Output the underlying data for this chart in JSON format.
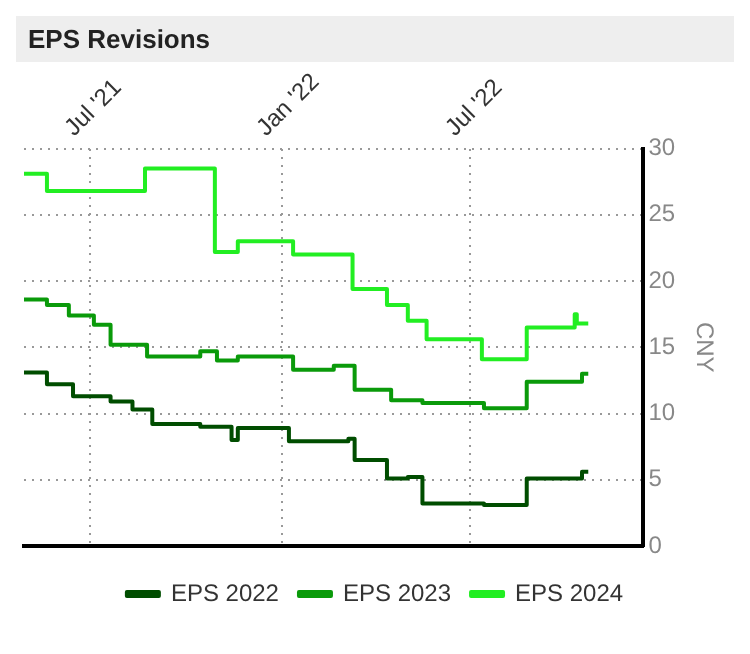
{
  "chart_data": {
    "type": "step",
    "title": "EPS Revisions",
    "ylabel": "CNY",
    "xlim": [
      "2021-04-29",
      "2022-12-13"
    ],
    "xticks": [
      {
        "value": "2021-07-01",
        "label": "Jul '21"
      },
      {
        "value": "2022-01-01",
        "label": "Jan '22"
      },
      {
        "value": "2022-07-01",
        "label": "Jul '22"
      }
    ],
    "ylim": [
      0,
      30
    ],
    "yticks": [
      0,
      5,
      10,
      15,
      20,
      25,
      30
    ],
    "grid": true,
    "legend": "bottom",
    "marker": "none",
    "line_style": "solid",
    "series": [
      {
        "name": "EPS 2022",
        "color": "#004d00",
        "x": [
          "2021-04-29",
          "2021-05-21",
          "2021-06-15",
          "2021-07-21",
          "2021-08-11",
          "2021-08-30",
          "2021-10-15",
          "2021-11-14",
          "2021-11-20",
          "2022-01-08",
          "2022-03-06",
          "2022-03-12",
          "2022-04-12",
          "2022-05-02",
          "2022-05-16",
          "2022-07-14",
          "2022-08-24",
          "2022-10-16",
          "2022-10-22"
        ],
        "values": [
          13.1,
          12.2,
          11.3,
          10.9,
          10.3,
          9.2,
          9.0,
          8.0,
          8.9,
          7.9,
          8.1,
          6.5,
          5.1,
          5.2,
          3.2,
          3.1,
          5.1,
          5.6,
          5.6
        ]
      },
      {
        "name": "EPS 2023",
        "color": "#0a9a0a",
        "x": [
          "2021-04-29",
          "2021-05-21",
          "2021-06-11",
          "2021-07-05",
          "2021-07-21",
          "2021-08-25",
          "2021-10-15",
          "2021-10-31",
          "2021-11-20",
          "2022-01-12",
          "2022-02-20",
          "2022-03-12",
          "2022-04-16",
          "2022-05-16",
          "2022-07-14",
          "2022-08-24",
          "2022-10-16",
          "2022-10-22"
        ],
        "values": [
          18.6,
          18.2,
          17.4,
          16.7,
          15.2,
          14.3,
          14.7,
          14.0,
          14.3,
          13.3,
          13.6,
          11.8,
          11.0,
          10.8,
          10.4,
          12.4,
          13.0,
          13.0
        ]
      },
      {
        "name": "EPS 2024",
        "color": "#22ee22",
        "x": [
          "2021-04-29",
          "2021-05-21",
          "2021-08-23",
          "2021-10-29",
          "2021-11-20",
          "2022-01-12",
          "2022-03-10",
          "2022-04-12",
          "2022-05-02",
          "2022-05-20",
          "2022-07-12",
          "2022-08-24",
          "2022-10-09",
          "2022-10-11",
          "2022-10-22"
        ],
        "values": [
          28.1,
          26.8,
          28.5,
          22.2,
          23.0,
          22.0,
          19.4,
          18.2,
          17.0,
          15.6,
          14.1,
          16.5,
          17.5,
          16.8,
          16.8
        ]
      }
    ]
  }
}
